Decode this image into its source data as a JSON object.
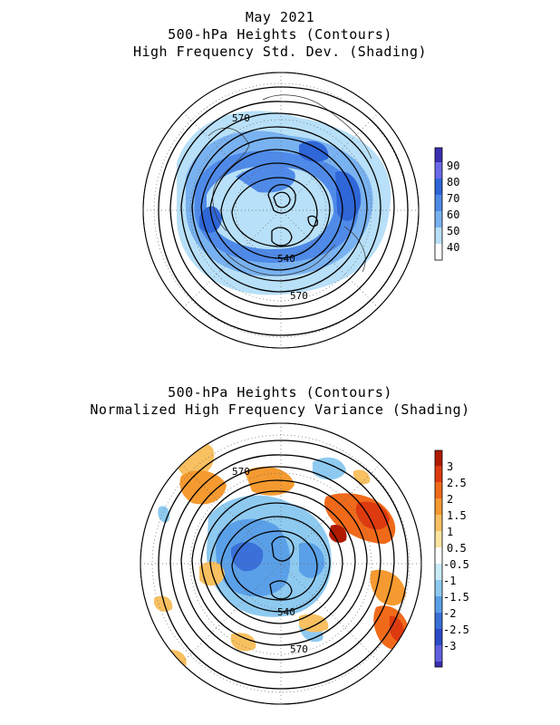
{
  "top_panel": {
    "titles": [
      "May 2021",
      "500-hPa Heights (Contours)",
      "High Frequency Std. Dev. (Shading)"
    ],
    "contour_labels": [
      "570",
      "540",
      "570"
    ],
    "colorbar": {
      "ticks": [
        "90",
        "80",
        "70",
        "60",
        "50",
        "40"
      ],
      "colors": [
        "#3a2fb0",
        "#6a6ae8",
        "#2f66d8",
        "#4f8ae8",
        "#79b2f0",
        "#b8e0f8",
        "#ffffff"
      ]
    }
  },
  "bottom_panel": {
    "titles": [
      "500-hPa Heights (Contours)",
      "Normalized High Frequency Variance (Shading)"
    ],
    "contour_labels": [
      "570",
      "540",
      "570"
    ],
    "colorbar": {
      "ticks": [
        "3",
        "2.5",
        "2",
        "1.5",
        "1",
        "0.5",
        "-0.5",
        "-1",
        "-1.5",
        "-2",
        "-2.5",
        "-3"
      ],
      "colors": [
        "#b01a00",
        "#dd3a10",
        "#f06a1a",
        "#f59a30",
        "#f8c060",
        "#fbe4a0",
        "#ffffff",
        "#c8ecf8",
        "#8ecaf0",
        "#5aa0e8",
        "#3a70d8",
        "#2a4ac8",
        "#6060e0",
        "#3a2fb0"
      ]
    }
  }
}
